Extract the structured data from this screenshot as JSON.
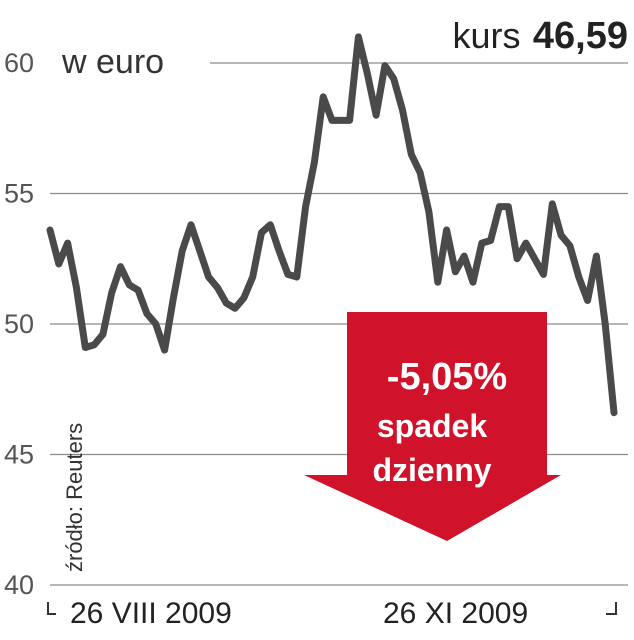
{
  "chart_data": {
    "type": "line",
    "unit": "w euro",
    "kurs_label": "kurs",
    "kurs_value": "46,59",
    "source": "źródło: Reuters",
    "x_labels": [
      "26 VIII 2009",
      "26 XI 2009"
    ],
    "y_ticks": [
      60,
      55,
      50,
      45,
      40
    ],
    "ylim": [
      40,
      61
    ],
    "grid": true,
    "annotation": {
      "line1": "-5,05%",
      "line2": "spadek",
      "line3": "dzienny",
      "color": "#d0122a"
    },
    "line_color": "#4a4a4a",
    "series": [
      {
        "values": [
          53.6,
          52.3,
          53.1,
          51.4,
          49.1,
          49.2,
          49.6,
          51.2,
          52.2,
          51.5,
          51.3,
          50.4,
          50.0,
          49.0,
          51.0,
          52.8,
          53.8,
          52.8,
          51.8,
          51.4,
          50.8,
          50.6,
          51.0,
          51.8,
          53.5,
          53.8,
          52.8,
          51.9,
          51.8,
          54.5,
          56.2,
          58.7,
          57.8,
          57.8,
          57.8,
          61.0,
          59.6,
          58.0,
          59.9,
          59.4,
          58.2,
          56.5,
          55.8,
          54.3,
          51.6,
          53.6,
          52.0,
          52.6,
          51.6,
          53.1,
          53.2,
          54.5,
          54.5,
          52.5,
          53.1,
          52.5,
          51.9,
          54.6,
          53.4,
          53.0,
          51.8,
          50.9,
          52.6,
          50.0,
          46.6
        ]
      }
    ]
  }
}
